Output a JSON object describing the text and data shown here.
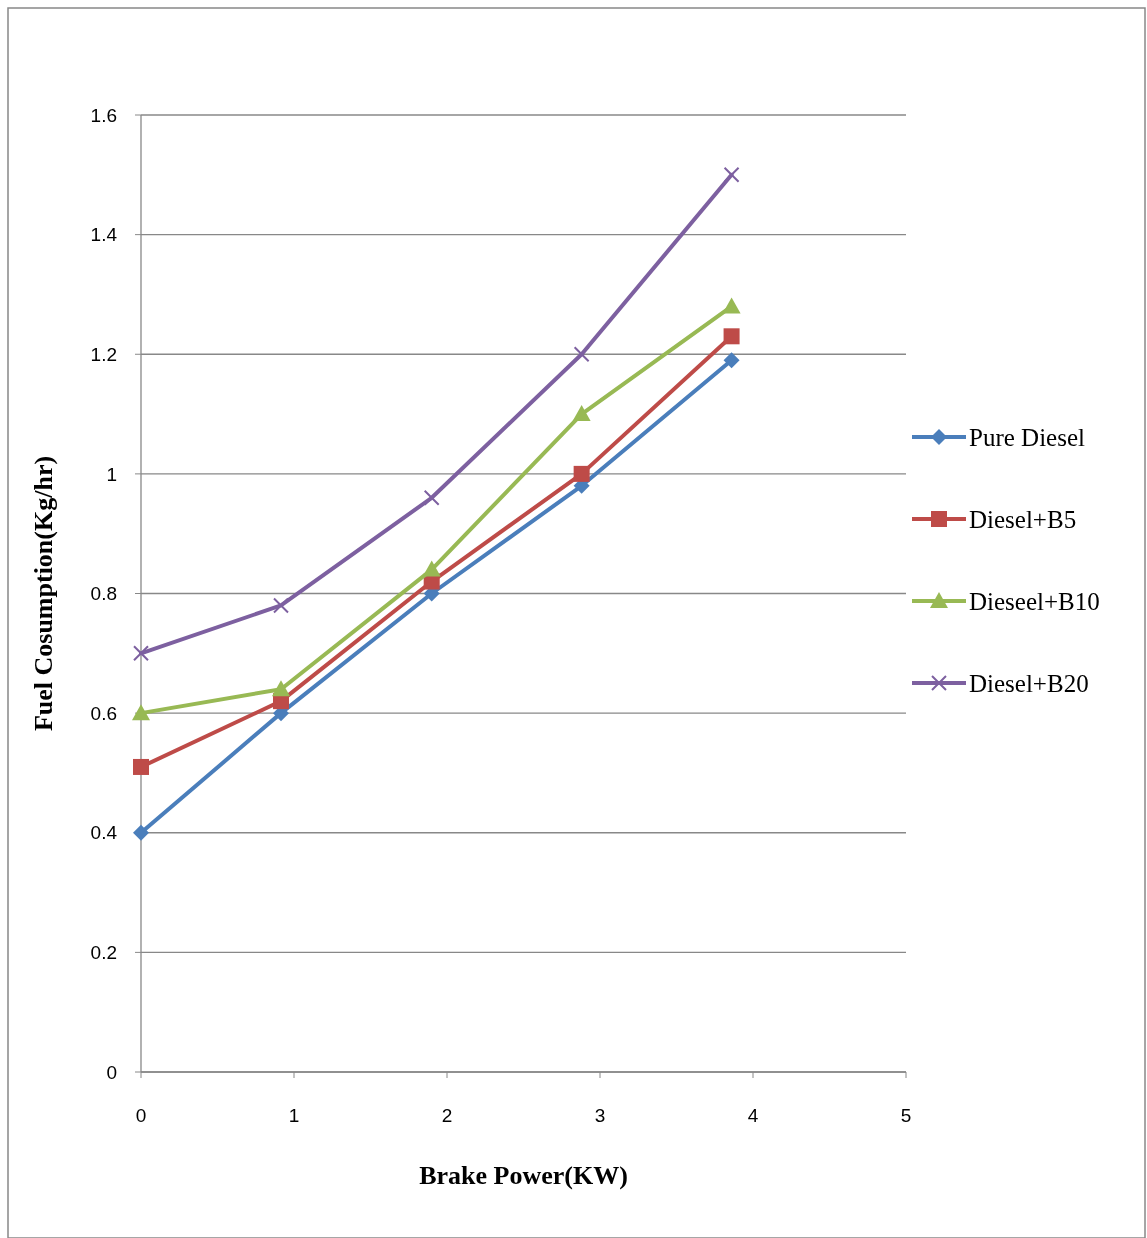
{
  "chart_data": {
    "type": "line",
    "xlabel": "Brake Power(KW)",
    "ylabel": "Fuel Cosumption(Kg/hr)",
    "x": [
      0,
      0.915,
      1.9,
      2.88,
      3.86
    ],
    "series": [
      {
        "name": "Pure Diesel",
        "color": "#4a7ebb",
        "marker": "diamond",
        "values": [
          0.4,
          0.6,
          0.8,
          0.98,
          1.19
        ]
      },
      {
        "name": "Diesel+B5",
        "color": "#be4b48",
        "marker": "square",
        "values": [
          0.51,
          0.62,
          0.82,
          1.0,
          1.23
        ]
      },
      {
        "name": "Dieseel+B10",
        "color": "#98b954",
        "marker": "triangle",
        "values": [
          0.6,
          0.64,
          0.84,
          1.1,
          1.28
        ]
      },
      {
        "name": "Diesel+B20",
        "color": "#7d60a0",
        "marker": "cross",
        "values": [
          0.7,
          0.78,
          0.96,
          1.2,
          1.5
        ]
      }
    ],
    "xlim": [
      0,
      5
    ],
    "xticks": [
      0,
      1,
      2,
      3,
      4,
      5
    ],
    "ylim": [
      0,
      1.6
    ],
    "yticks": [
      0,
      0.2,
      0.4,
      0.6,
      0.8,
      1,
      1.2,
      1.4,
      1.6
    ],
    "grid": "y",
    "legend": "right",
    "line_style": "solid"
  }
}
